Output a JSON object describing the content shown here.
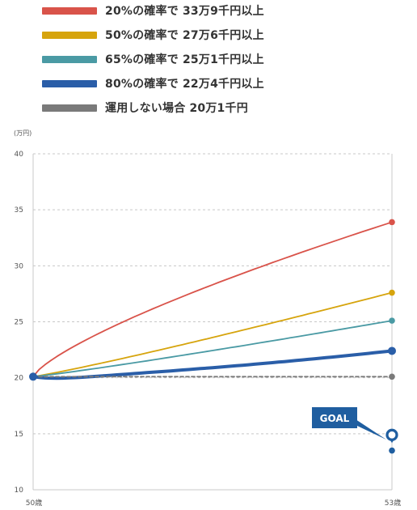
{
  "chart_data": {
    "type": "line",
    "x_categories": [
      "50歳",
      "53歳"
    ],
    "y_unit": "(万円)",
    "ylim": [
      10,
      40
    ],
    "y_ticks": [
      "10",
      "15",
      "20",
      "25",
      "30",
      "35",
      "40"
    ],
    "grid": true,
    "legend_position": "top",
    "series": [
      {
        "name": "20%の確率で 33万9千円以上",
        "color": "#d9534a",
        "start": 20.1,
        "end": 33.9,
        "end_label": "33万9千円"
      },
      {
        "name": "50%の確率で 27万6千円以上",
        "color": "#d6a40d",
        "start": 20.1,
        "end": 27.6,
        "end_label": "27万6千円"
      },
      {
        "name": "65%の確率で 25万1千円以上",
        "color": "#4a9aa4",
        "start": 20.1,
        "end": 25.1,
        "end_label": "25万1千円"
      },
      {
        "name": "80%の確率で 22万4千円以上",
        "color": "#2a5ea8",
        "start": 20.1,
        "end": 22.4,
        "end_label": "22万4千円",
        "dip_min": 19.5
      },
      {
        "name": "運用しない場合 20万1千円",
        "color": "#7a7a7a",
        "start": 20.1,
        "end": 20.1,
        "end_label": "20万1千円"
      }
    ],
    "goal": {
      "label": "GOAL",
      "value": 14.9,
      "second_value": 13.5,
      "color": "#1f5ea0"
    }
  }
}
